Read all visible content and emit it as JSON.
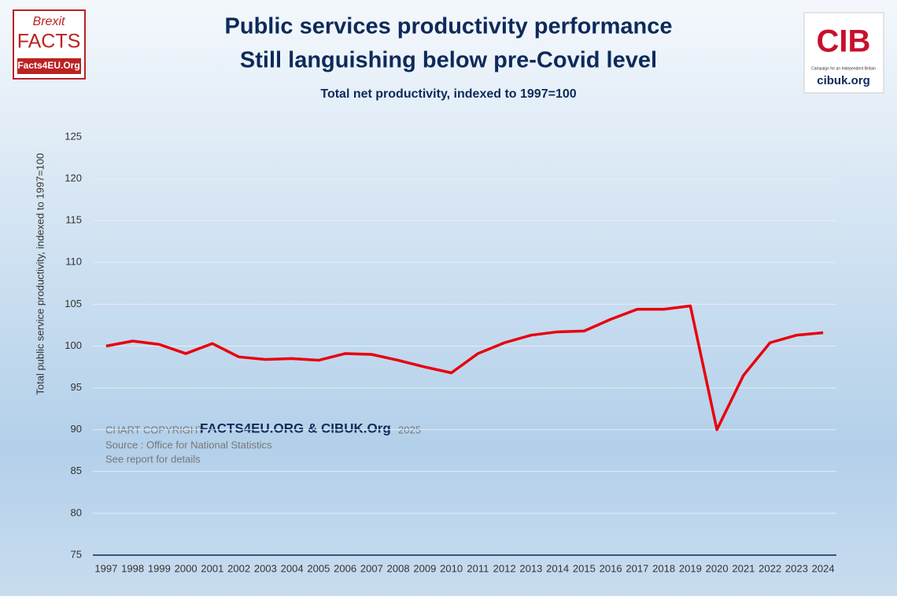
{
  "chart_data": {
    "type": "line",
    "title": "Public services productivity performance",
    "subtitle_line2": "Still languishing below pre-Covid level",
    "subtitle": "Total net productivity, indexed to 1997=100",
    "y_label": "Total public service productivity, indexed to 1997=100",
    "annotations": {
      "copyright_prefix": "CHART COPYRIGHT",
      "copyright_name": "FACTS4EU.ORG & CIBUK.Org",
      "copyright_year": "2025",
      "source": "Source : Office for National Statistics",
      "details": "See report for details"
    },
    "logos": {
      "left_top": "Brexit",
      "left_mid": "FACTS",
      "left_bottom": "Facts4EU.Org",
      "right_mark": "CIB",
      "right_tagline": "Campaign for an Independent Britain",
      "right_url": "cibuk.org"
    },
    "categories": [
      "1997",
      "1998",
      "1999",
      "2000",
      "2001",
      "2002",
      "2003",
      "2004",
      "2005",
      "2006",
      "2007",
      "2008",
      "2009",
      "2010",
      "2011",
      "2012",
      "2013",
      "2014",
      "2015",
      "2016",
      "2017",
      "2018",
      "2019",
      "2020",
      "2021",
      "2022",
      "2023",
      "2024"
    ],
    "series": [
      {
        "color": "#e8000b",
        "values": [
          100.0,
          100.6,
          100.2,
          99.1,
          100.3,
          98.7,
          98.4,
          98.5,
          98.3,
          99.1,
          99.0,
          98.3,
          97.5,
          96.8,
          99.1,
          100.4,
          101.3,
          101.7,
          101.8,
          103.2,
          104.4,
          104.4,
          104.8,
          90.0,
          96.5,
          100.4,
          101.3,
          101.6
        ]
      }
    ],
    "ylim": [
      75,
      125
    ],
    "yticks": [
      75,
      80,
      85,
      90,
      95,
      100,
      105,
      110,
      115,
      120,
      125
    ],
    "grid": true
  }
}
